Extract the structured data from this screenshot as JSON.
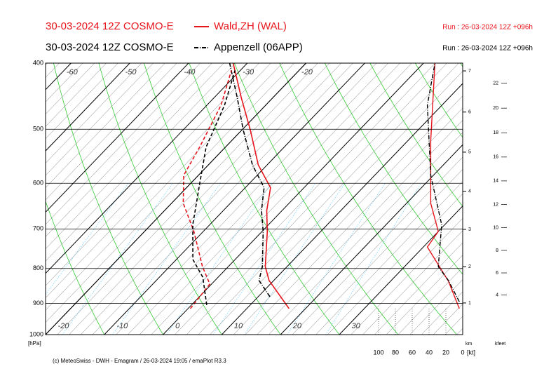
{
  "chart_data": {
    "type": "emagram",
    "legend": [
      {
        "title": "30-03-2024 12Z COSMO-E",
        "name": "Wald,ZH (WAL)",
        "run": "Run : 26-03-2024 12Z +096h",
        "color": "#e8141c",
        "dash": "solid"
      },
      {
        "title": "30-03-2024 12Z COSMO-E",
        "name": "Appenzell (06APP)",
        "run": "Run : 26-03-2024 12Z +096h",
        "color": "#000000",
        "dash": "dashdot"
      }
    ],
    "ylabel": "[hPa]",
    "log_y": true,
    "ylim": [
      1000,
      400
    ],
    "yticks": [
      400,
      500,
      600,
      700,
      800,
      900,
      1000
    ],
    "xlim": [
      -20,
      51
    ],
    "xticks_bottom": [
      -20,
      -10,
      0,
      10,
      20,
      30
    ],
    "xticks_top": [
      -60,
      -50,
      -40,
      -30,
      -20
    ],
    "series": [
      {
        "color": "#e8141c",
        "dash": "solid",
        "pressure": [
          916,
          833,
          795,
          706,
          658,
          609,
          564,
          501,
          450,
          400
        ],
        "temperature": [
          17.2,
          9.2,
          6.3,
          0.9,
          -2.6,
          -5.7,
          -11.5,
          -18.6,
          -25.3,
          -32.4
        ]
      },
      {
        "color": "#000000",
        "dash": "dashdot",
        "pressure": [
          880,
          833,
          795,
          706,
          658,
          609,
          564,
          501,
          450,
          400
        ],
        "temperature": [
          12,
          7.5,
          5.8,
          0.2,
          -3.5,
          -6.8,
          -12.5,
          -19.8,
          -26,
          -33
        ]
      },
      {
        "color": "#e8141c",
        "dash": "dashed",
        "pressure": [
          916,
          843,
          795,
          706,
          642,
          584,
          531,
          461,
          410
        ],
        "temperature": [
          0.4,
          -0.3,
          -4.4,
          -11.6,
          -18.0,
          -22.5,
          -24.4,
          -27.6,
          -31.5
        ]
      },
      {
        "color": "#000000",
        "dash": "dashed",
        "pressure": [
          905,
          824,
          776,
          690,
          598,
          531,
          461,
          410
        ],
        "temperature": [
          2.6,
          -2.6,
          -7.2,
          -12.9,
          -18.6,
          -23.3,
          -27.0,
          -30.9
        ]
      }
    ],
    "wind_axis": {
      "label": "[kt]",
      "lim": [
        100,
        0
      ],
      "ticks": [
        100,
        80,
        60,
        40,
        20,
        0
      ]
    },
    "wind_series": [
      {
        "color": "#e8141c",
        "dash": "solid",
        "pressure": [
          916,
          835,
          744,
          706,
          642,
          520,
          400
        ],
        "speed": [
          4,
          17,
          42,
          29,
          38,
          38,
          33
        ]
      },
      {
        "color": "#000000",
        "dash": "dashdot",
        "pressure": [
          895,
          833,
          795,
          690,
          584,
          461,
          400
        ],
        "speed": [
          4,
          17,
          29,
          25,
          38,
          42,
          33
        ]
      }
    ],
    "height_km": {
      "label": "km",
      "ticks": [
        1,
        2,
        3,
        4,
        5,
        6,
        7
      ]
    },
    "height_kfeet": {
      "label": "kfeet",
      "ticks": [
        4,
        6,
        8,
        10,
        12,
        14,
        16,
        18,
        20,
        22
      ]
    },
    "footer": "(c) MeteoSwiss - DWH - Emagram / 26-03-2024 19:05 / emaPlot R3.3"
  }
}
